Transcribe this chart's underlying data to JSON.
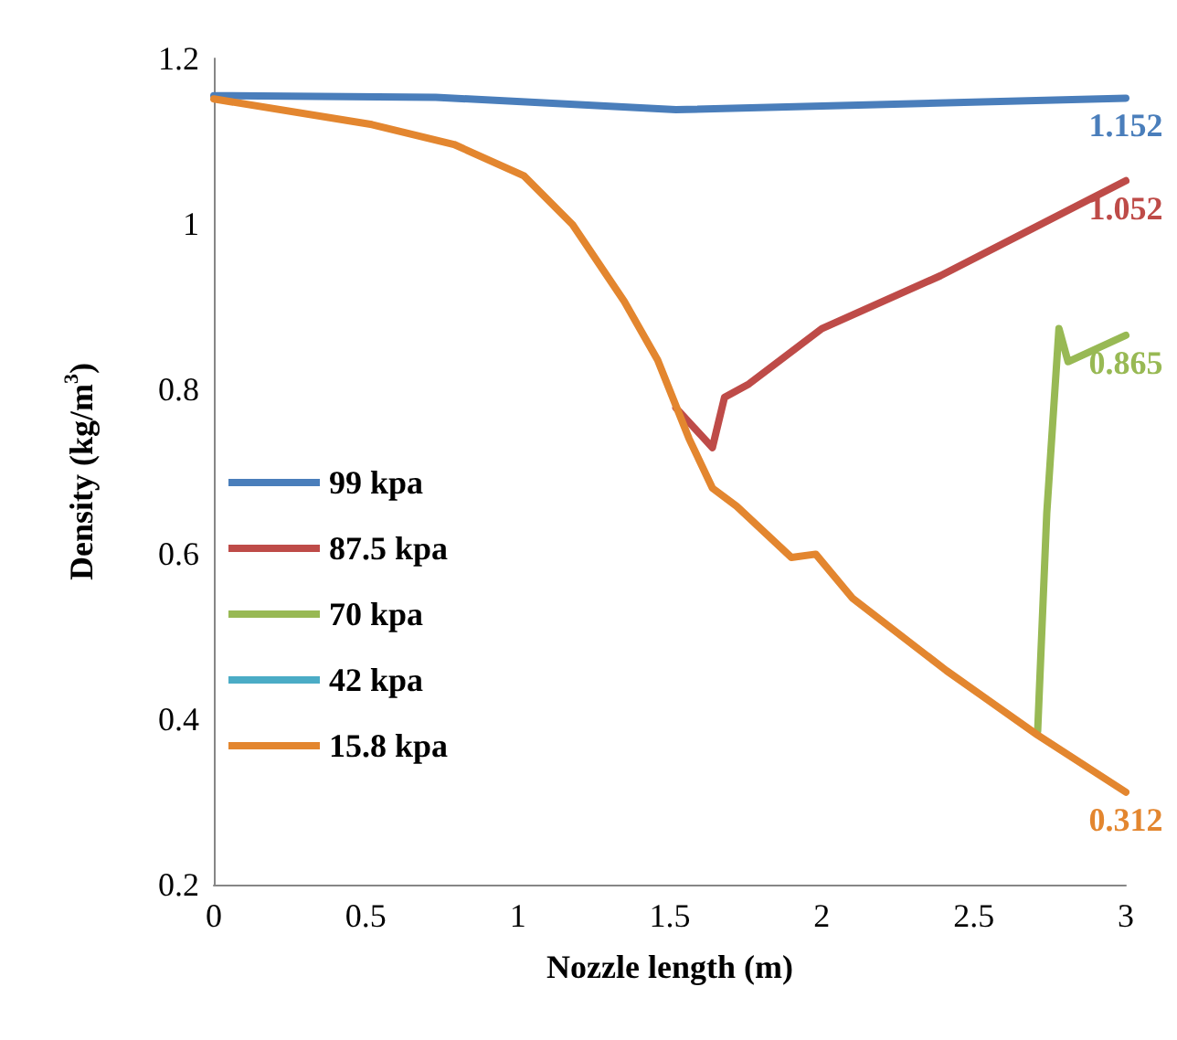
{
  "chart_data": {
    "type": "line",
    "xlabel": "Nozzle length (m)",
    "ylabel": "Density (kg/m$^{3}$)",
    "xlim": [
      0,
      3
    ],
    "xticks": [
      0,
      0.5,
      1,
      1.5,
      2,
      2.5,
      3
    ],
    "ylim": [
      0.2,
      1.2
    ],
    "yticks": [
      0.2,
      0.4,
      0.6,
      0.8,
      1,
      1.2
    ],
    "grid": false,
    "legend": "left",
    "marker": "none",
    "line_style": "solid",
    "series": [
      {
        "name": "99 kpa",
        "color": "#4a7ebb",
        "x": [
          0,
          0.73,
          1.52,
          3
        ],
        "values": [
          1.155,
          1.153,
          1.138,
          1.152
        ],
        "value_labels": [
          null,
          null,
          null,
          "1.152"
        ]
      },
      {
        "name": "87.5 kpa",
        "color": "#be4b48",
        "x": [
          1.52,
          1.64,
          1.68,
          1.76,
          2,
          2.39,
          3
        ],
        "values": [
          0.777,
          0.729,
          0.79,
          0.806,
          0.873,
          0.937,
          1.052
        ],
        "value_labels": [
          null,
          null,
          null,
          null,
          null,
          null,
          "1.052"
        ]
      },
      {
        "name": "70 kpa",
        "color": "#98b954",
        "x": [
          2.71,
          2.74,
          2.78,
          2.81,
          3
        ],
        "values": [
          0.386,
          0.65,
          0.873,
          0.833,
          0.865
        ],
        "value_labels": [
          null,
          null,
          null,
          null,
          "0.865"
        ]
      },
      {
        "name": "42 kpa",
        "color": "#4bacc6"
      },
      {
        "name": "15.8 kpa",
        "color": "#e3862f",
        "x": [
          0,
          0.52,
          0.79,
          1.02,
          1.18,
          1.35,
          1.46,
          1.563,
          1.64,
          1.72,
          1.9,
          1.98,
          2.1,
          2.41,
          2.71,
          3
        ],
        "values": [
          1.151,
          1.12,
          1.096,
          1.058,
          0.999,
          0.906,
          0.835,
          0.74,
          0.68,
          0.658,
          0.596,
          0.6,
          0.547,
          0.459,
          0.381,
          0.312
        ],
        "value_labels": [
          null,
          null,
          null,
          null,
          null,
          null,
          null,
          null,
          null,
          null,
          null,
          null,
          null,
          null,
          null,
          "0.312"
        ]
      }
    ]
  }
}
